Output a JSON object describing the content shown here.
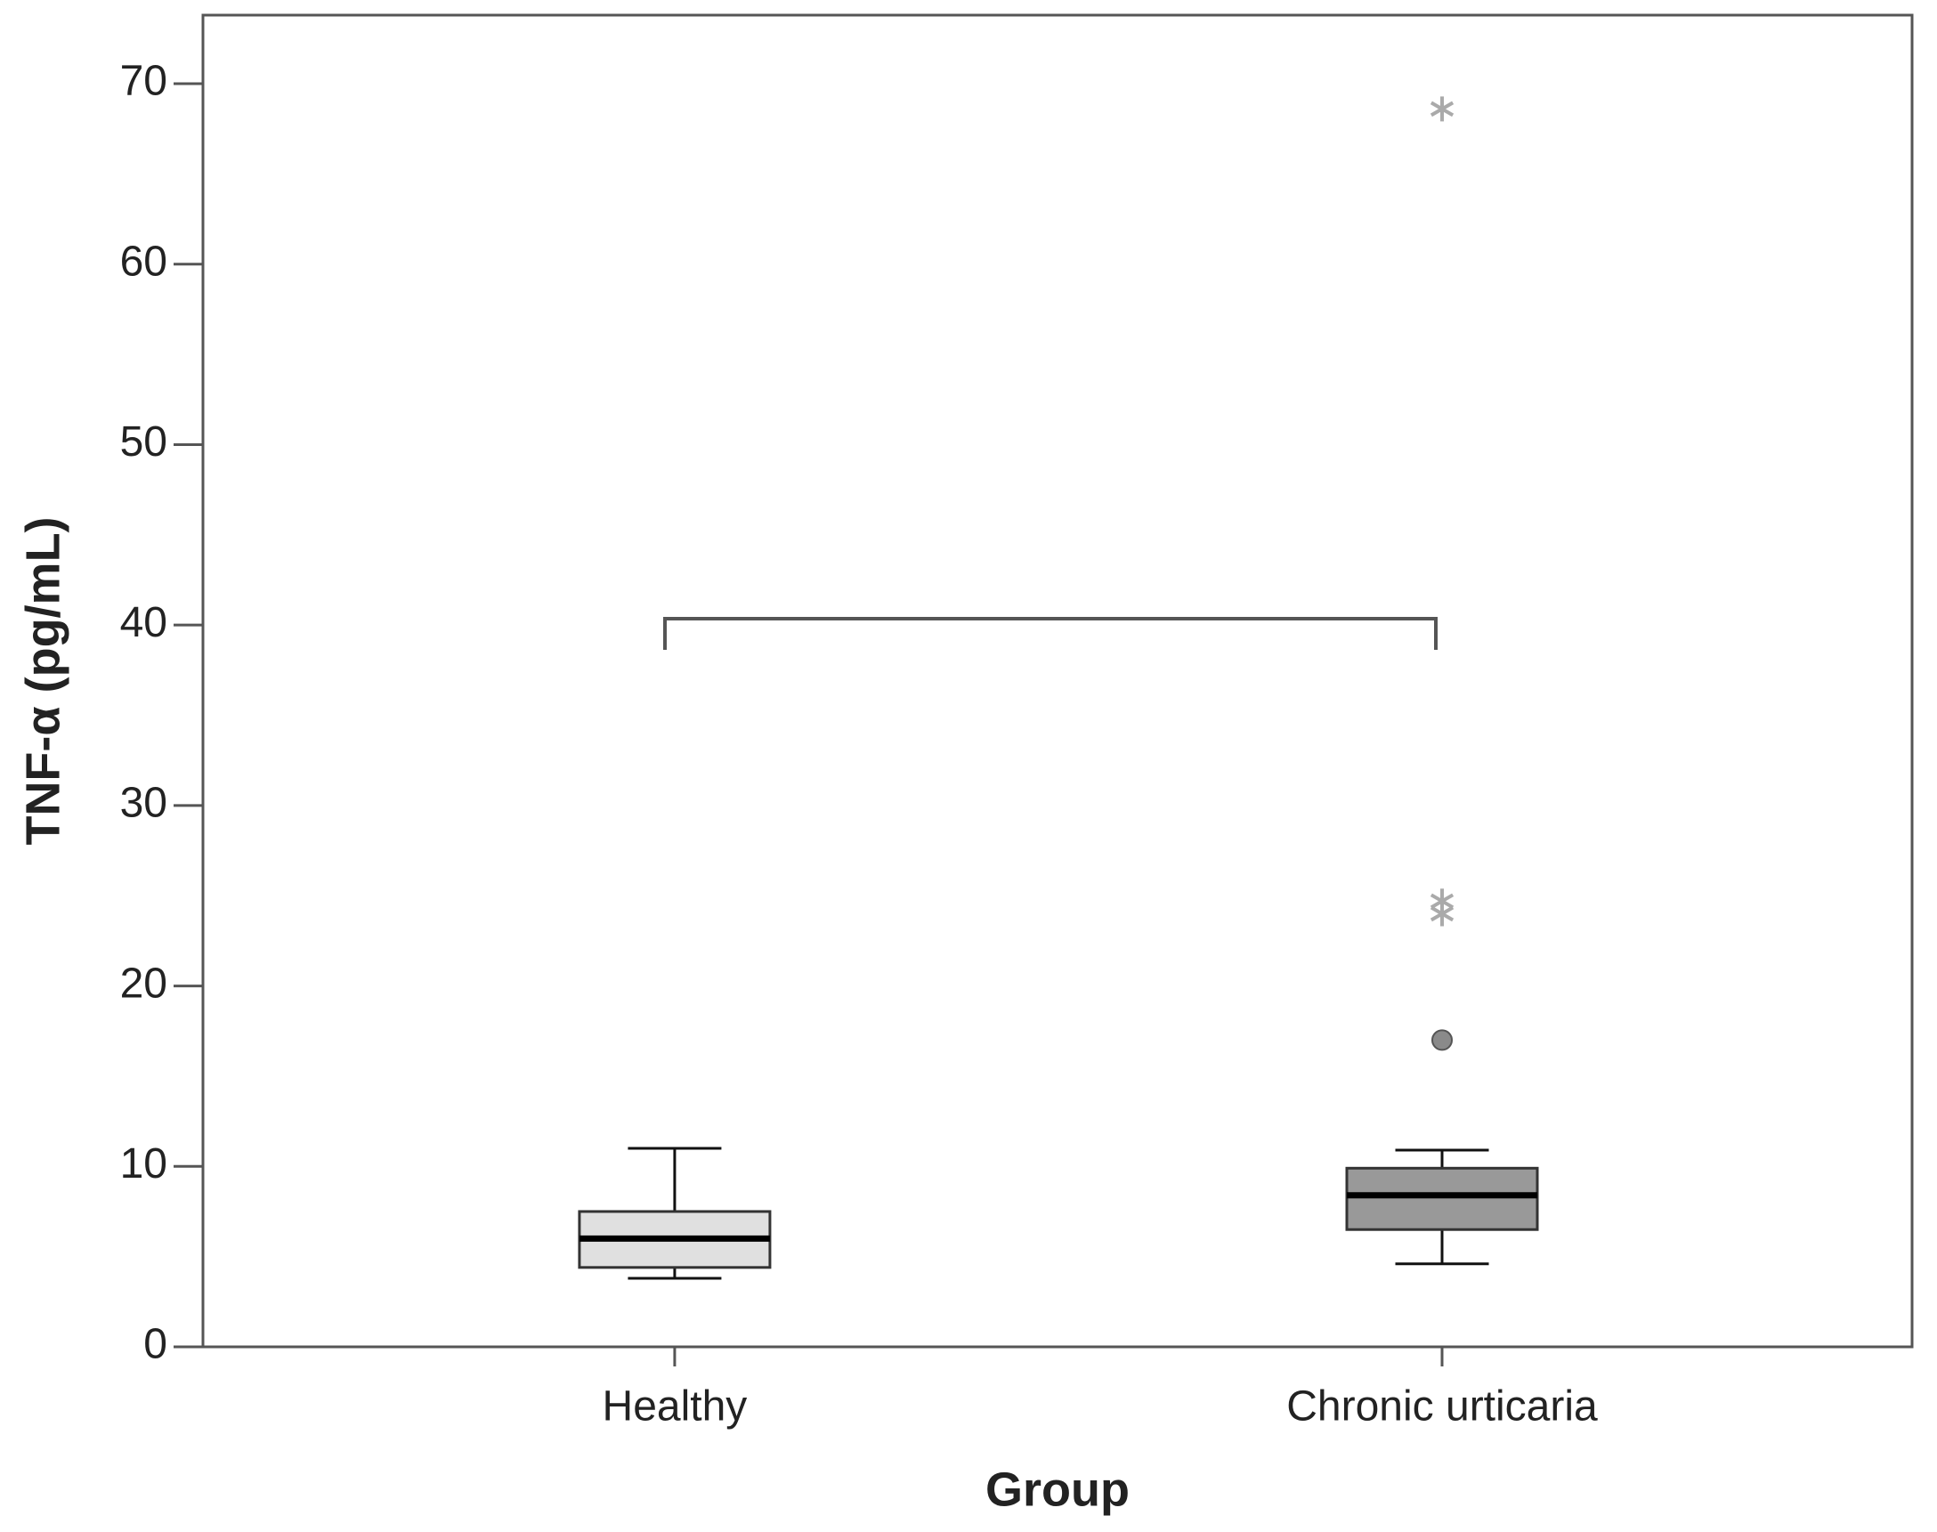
{
  "chart_data": {
    "type": "box",
    "x_label": "Group",
    "y_label": "TNF-α (pg/mL)",
    "categories": [
      "Healthy",
      "Chronic urticaria"
    ],
    "boxes": [
      {
        "min": 3.8,
        "q1": 4.4,
        "median": 6.0,
        "q3": 7.5,
        "max": 11.0,
        "outliers": [],
        "extremes": [],
        "color": "#e0e0e0"
      },
      {
        "min": 4.6,
        "q1": 6.5,
        "median": 8.4,
        "q3": 9.9,
        "max": 10.9,
        "outliers": [
          17.0
        ],
        "extremes": [
          24.0,
          24.7,
          68.6
        ],
        "color": "#999999"
      }
    ],
    "outlier_color": "#8a8a8a",
    "extreme_color": "#aaaaaa",
    "ylim": [
      0,
      73.8
    ],
    "yticks": [
      0,
      10,
      20,
      30,
      40,
      50,
      60,
      70
    ],
    "grid": false
  }
}
